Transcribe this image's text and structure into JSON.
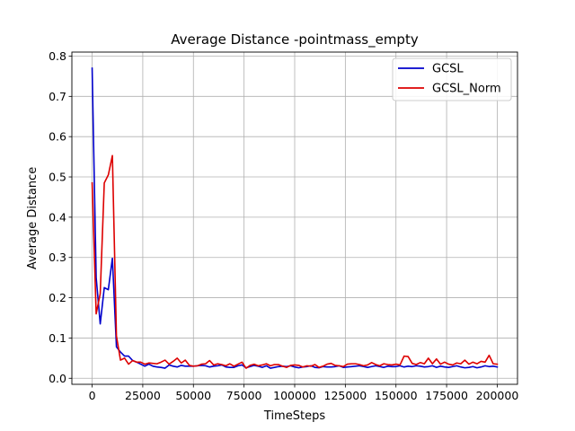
{
  "chart_data": {
    "type": "line",
    "title": "Average Distance -pointmass_empty",
    "xlabel": "TimeSteps",
    "ylabel": "Average Distance",
    "xlim": [
      -10000,
      210000
    ],
    "ylim": [
      -0.015,
      0.81
    ],
    "xticks": [
      0,
      25000,
      50000,
      75000,
      100000,
      125000,
      150000,
      175000,
      200000
    ],
    "xtick_labels": [
      "0",
      "25000",
      "50000",
      "75000",
      "100000",
      "125000",
      "150000",
      "175000",
      "200000"
    ],
    "yticks": [
      0.0,
      0.1,
      0.2,
      0.3,
      0.4,
      0.5,
      0.6,
      0.7,
      0.8
    ],
    "ytick_labels": [
      "0.0",
      "0.1",
      "0.2",
      "0.3",
      "0.4",
      "0.5",
      "0.6",
      "0.7",
      "0.8"
    ],
    "grid": true,
    "legend_position": "top-right",
    "series": [
      {
        "name": "GCSL",
        "color": "#0000cc",
        "x": [
          0,
          2000,
          4000,
          6000,
          8000,
          10000,
          12000,
          14000,
          16000,
          18000,
          20000,
          22000,
          24000,
          26000,
          28000,
          30000,
          32000,
          34000,
          36000,
          38000,
          40000,
          42000,
          44000,
          46000,
          48000,
          50000,
          52000,
          54000,
          56000,
          58000,
          60000,
          62000,
          64000,
          66000,
          68000,
          70000,
          72000,
          74000,
          76000,
          78000,
          80000,
          82000,
          84000,
          86000,
          88000,
          90000,
          92000,
          94000,
          96000,
          98000,
          100000,
          102000,
          104000,
          106000,
          108000,
          110000,
          112000,
          114000,
          116000,
          118000,
          120000,
          122000,
          124000,
          126000,
          128000,
          130000,
          132000,
          134000,
          136000,
          138000,
          140000,
          142000,
          144000,
          146000,
          148000,
          150000,
          152000,
          154000,
          156000,
          158000,
          160000,
          162000,
          164000,
          166000,
          168000,
          170000,
          172000,
          174000,
          176000,
          178000,
          180000,
          182000,
          184000,
          186000,
          188000,
          190000,
          192000,
          194000,
          196000,
          198000,
          200000
        ],
        "values": [
          0.77,
          0.25,
          0.135,
          0.225,
          0.22,
          0.298,
          0.078,
          0.065,
          0.055,
          0.055,
          0.044,
          0.04,
          0.035,
          0.03,
          0.035,
          0.03,
          0.028,
          0.027,
          0.025,
          0.033,
          0.03,
          0.028,
          0.032,
          0.03,
          0.03,
          0.03,
          0.031,
          0.032,
          0.031,
          0.028,
          0.03,
          0.031,
          0.033,
          0.028,
          0.027,
          0.027,
          0.031,
          0.033,
          0.026,
          0.029,
          0.032,
          0.03,
          0.027,
          0.031,
          0.025,
          0.027,
          0.029,
          0.03,
          0.029,
          0.031,
          0.028,
          0.026,
          0.028,
          0.029,
          0.031,
          0.027,
          0.026,
          0.029,
          0.028,
          0.028,
          0.029,
          0.031,
          0.027,
          0.028,
          0.029,
          0.03,
          0.031,
          0.029,
          0.027,
          0.029,
          0.031,
          0.029,
          0.027,
          0.03,
          0.029,
          0.029,
          0.031,
          0.028,
          0.03,
          0.029,
          0.031,
          0.03,
          0.028,
          0.029,
          0.031,
          0.027,
          0.03,
          0.028,
          0.027,
          0.029,
          0.031,
          0.028,
          0.026,
          0.027,
          0.029,
          0.026,
          0.028,
          0.031,
          0.029,
          0.03,
          0.028
        ]
      },
      {
        "name": "GCSL_Norm",
        "color": "#dd0000",
        "x": [
          0,
          2000,
          4000,
          6000,
          8000,
          10000,
          12000,
          14000,
          16000,
          18000,
          20000,
          22000,
          24000,
          26000,
          28000,
          30000,
          32000,
          34000,
          36000,
          38000,
          40000,
          42000,
          44000,
          46000,
          48000,
          50000,
          52000,
          54000,
          56000,
          58000,
          60000,
          62000,
          64000,
          66000,
          68000,
          70000,
          72000,
          74000,
          76000,
          78000,
          80000,
          82000,
          84000,
          86000,
          88000,
          90000,
          92000,
          94000,
          96000,
          98000,
          100000,
          102000,
          104000,
          106000,
          108000,
          110000,
          112000,
          114000,
          116000,
          118000,
          120000,
          122000,
          124000,
          126000,
          128000,
          130000,
          132000,
          134000,
          136000,
          138000,
          140000,
          142000,
          144000,
          146000,
          148000,
          150000,
          152000,
          154000,
          156000,
          158000,
          160000,
          162000,
          164000,
          166000,
          168000,
          170000,
          172000,
          174000,
          176000,
          178000,
          180000,
          182000,
          184000,
          186000,
          188000,
          190000,
          192000,
          194000,
          196000,
          198000,
          200000
        ],
        "values": [
          0.485,
          0.16,
          0.21,
          0.485,
          0.505,
          0.553,
          0.105,
          0.045,
          0.05,
          0.035,
          0.044,
          0.04,
          0.04,
          0.035,
          0.038,
          0.037,
          0.036,
          0.04,
          0.045,
          0.035,
          0.042,
          0.05,
          0.038,
          0.045,
          0.032,
          0.03,
          0.031,
          0.035,
          0.036,
          0.044,
          0.033,
          0.036,
          0.034,
          0.031,
          0.036,
          0.03,
          0.035,
          0.04,
          0.025,
          0.032,
          0.035,
          0.031,
          0.033,
          0.036,
          0.031,
          0.034,
          0.034,
          0.03,
          0.027,
          0.032,
          0.033,
          0.032,
          0.028,
          0.031,
          0.03,
          0.034,
          0.027,
          0.03,
          0.035,
          0.037,
          0.032,
          0.031,
          0.029,
          0.035,
          0.036,
          0.036,
          0.034,
          0.031,
          0.033,
          0.039,
          0.034,
          0.031,
          0.036,
          0.034,
          0.033,
          0.035,
          0.033,
          0.055,
          0.054,
          0.037,
          0.034,
          0.039,
          0.036,
          0.05,
          0.036,
          0.048,
          0.035,
          0.04,
          0.035,
          0.033,
          0.038,
          0.036,
          0.045,
          0.035,
          0.04,
          0.036,
          0.042,
          0.04,
          0.057,
          0.036,
          0.035
        ]
      }
    ]
  }
}
